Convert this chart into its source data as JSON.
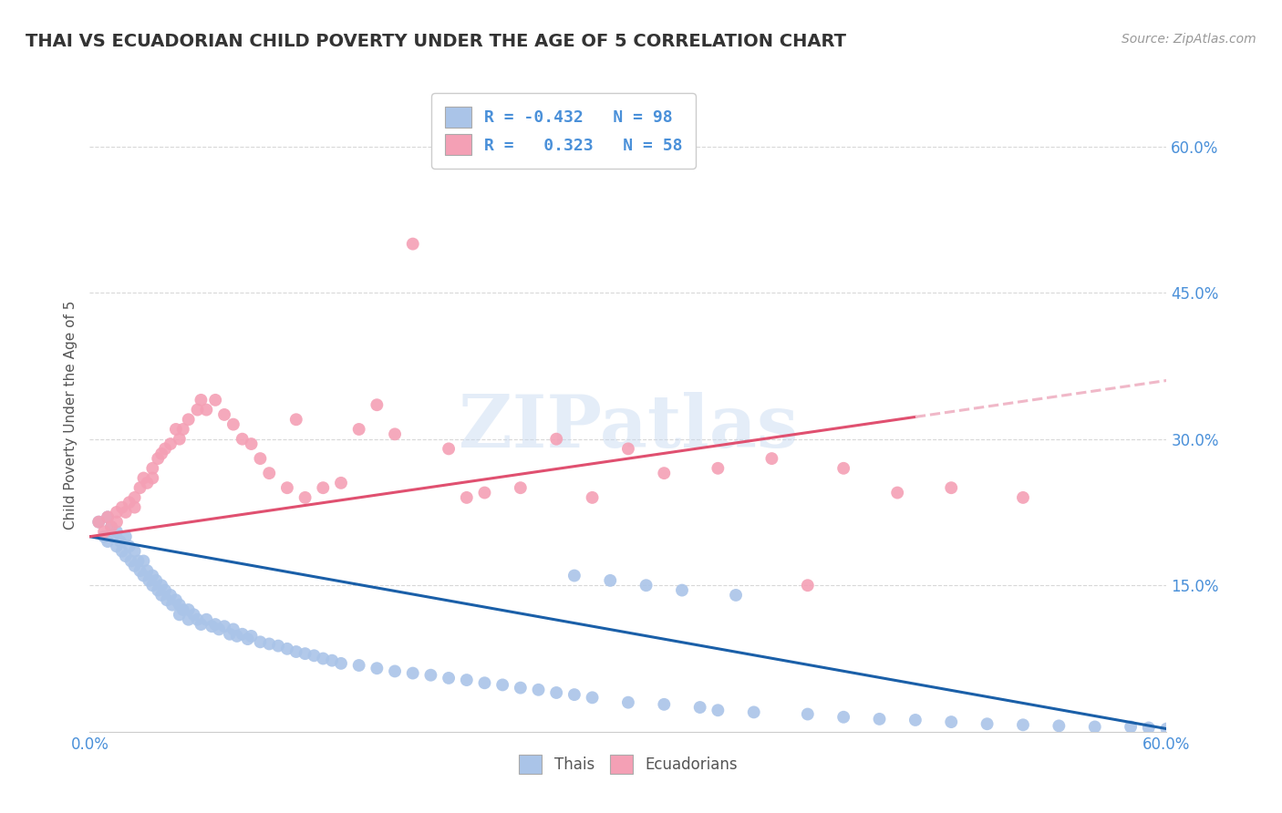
{
  "title": "THAI VS ECUADORIAN CHILD POVERTY UNDER THE AGE OF 5 CORRELATION CHART",
  "source": "Source: ZipAtlas.com",
  "ylabel": "Child Poverty Under the Age of 5",
  "xlim": [
    0.0,
    0.6
  ],
  "ylim": [
    0.0,
    0.65
  ],
  "background_color": "#ffffff",
  "grid_color": "#d8d8d8",
  "title_color": "#333333",
  "title_fontsize": 14,
  "axis_tick_color": "#4a90d9",
  "watermark_text": "ZIPatlas",
  "legend_labels": [
    "Thais",
    "Ecuadorians"
  ],
  "legend_r_values": [
    "-0.432",
    "0.323"
  ],
  "legend_n_values": [
    "98",
    "58"
  ],
  "thai_color": "#aac4e8",
  "thai_line_color": "#1a5fa8",
  "ecuadorian_color": "#f4a0b5",
  "ecuadorian_line_color": "#e05070",
  "ecuadorian_dash_color": "#f0b8c8",
  "thai_scatter_x": [
    0.005,
    0.008,
    0.01,
    0.01,
    0.012,
    0.013,
    0.015,
    0.015,
    0.017,
    0.018,
    0.02,
    0.02,
    0.022,
    0.023,
    0.025,
    0.025,
    0.027,
    0.028,
    0.03,
    0.03,
    0.032,
    0.033,
    0.035,
    0.035,
    0.037,
    0.038,
    0.04,
    0.04,
    0.042,
    0.043,
    0.045,
    0.046,
    0.048,
    0.05,
    0.05,
    0.052,
    0.055,
    0.055,
    0.058,
    0.06,
    0.062,
    0.065,
    0.068,
    0.07,
    0.072,
    0.075,
    0.078,
    0.08,
    0.082,
    0.085,
    0.088,
    0.09,
    0.095,
    0.1,
    0.105,
    0.11,
    0.115,
    0.12,
    0.125,
    0.13,
    0.135,
    0.14,
    0.15,
    0.16,
    0.17,
    0.18,
    0.19,
    0.2,
    0.21,
    0.22,
    0.23,
    0.24,
    0.25,
    0.26,
    0.27,
    0.28,
    0.3,
    0.32,
    0.34,
    0.35,
    0.37,
    0.4,
    0.42,
    0.44,
    0.46,
    0.48,
    0.5,
    0.52,
    0.54,
    0.56,
    0.58,
    0.59,
    0.6,
    0.27,
    0.29,
    0.31,
    0.33,
    0.36
  ],
  "thai_scatter_y": [
    0.215,
    0.2,
    0.22,
    0.195,
    0.21,
    0.2,
    0.205,
    0.19,
    0.195,
    0.185,
    0.2,
    0.18,
    0.19,
    0.175,
    0.185,
    0.17,
    0.175,
    0.165,
    0.175,
    0.16,
    0.165,
    0.155,
    0.16,
    0.15,
    0.155,
    0.145,
    0.15,
    0.14,
    0.145,
    0.135,
    0.14,
    0.13,
    0.135,
    0.13,
    0.12,
    0.125,
    0.125,
    0.115,
    0.12,
    0.115,
    0.11,
    0.115,
    0.108,
    0.11,
    0.105,
    0.108,
    0.1,
    0.105,
    0.098,
    0.1,
    0.095,
    0.098,
    0.092,
    0.09,
    0.088,
    0.085,
    0.082,
    0.08,
    0.078,
    0.075,
    0.073,
    0.07,
    0.068,
    0.065,
    0.062,
    0.06,
    0.058,
    0.055,
    0.053,
    0.05,
    0.048,
    0.045,
    0.043,
    0.04,
    0.038,
    0.035,
    0.03,
    0.028,
    0.025,
    0.022,
    0.02,
    0.018,
    0.015,
    0.013,
    0.012,
    0.01,
    0.008,
    0.007,
    0.006,
    0.005,
    0.005,
    0.004,
    0.003,
    0.16,
    0.155,
    0.15,
    0.145,
    0.14
  ],
  "ecuadorian_scatter_x": [
    0.005,
    0.008,
    0.01,
    0.012,
    0.015,
    0.015,
    0.018,
    0.02,
    0.022,
    0.025,
    0.025,
    0.028,
    0.03,
    0.032,
    0.035,
    0.035,
    0.038,
    0.04,
    0.042,
    0.045,
    0.048,
    0.05,
    0.052,
    0.055,
    0.06,
    0.062,
    0.065,
    0.07,
    0.075,
    0.08,
    0.085,
    0.09,
    0.095,
    0.1,
    0.11,
    0.115,
    0.12,
    0.13,
    0.14,
    0.15,
    0.16,
    0.17,
    0.18,
    0.2,
    0.21,
    0.22,
    0.24,
    0.26,
    0.28,
    0.3,
    0.32,
    0.35,
    0.38,
    0.4,
    0.42,
    0.45,
    0.48,
    0.52
  ],
  "ecuadorian_scatter_y": [
    0.215,
    0.205,
    0.22,
    0.21,
    0.225,
    0.215,
    0.23,
    0.225,
    0.235,
    0.23,
    0.24,
    0.25,
    0.26,
    0.255,
    0.27,
    0.26,
    0.28,
    0.285,
    0.29,
    0.295,
    0.31,
    0.3,
    0.31,
    0.32,
    0.33,
    0.34,
    0.33,
    0.34,
    0.325,
    0.315,
    0.3,
    0.295,
    0.28,
    0.265,
    0.25,
    0.32,
    0.24,
    0.25,
    0.255,
    0.31,
    0.335,
    0.305,
    0.5,
    0.29,
    0.24,
    0.245,
    0.25,
    0.3,
    0.24,
    0.29,
    0.265,
    0.27,
    0.28,
    0.15,
    0.27,
    0.245,
    0.25,
    0.24
  ],
  "thai_line_x0": 0.0,
  "thai_line_y0": 0.2,
  "thai_line_x1": 0.6,
  "thai_line_y1": 0.003,
  "ecu_line_x0": 0.0,
  "ecu_line_y0": 0.2,
  "ecu_line_solid_end": 0.46,
  "ecu_line_x1": 0.6,
  "ecu_line_y1": 0.36
}
